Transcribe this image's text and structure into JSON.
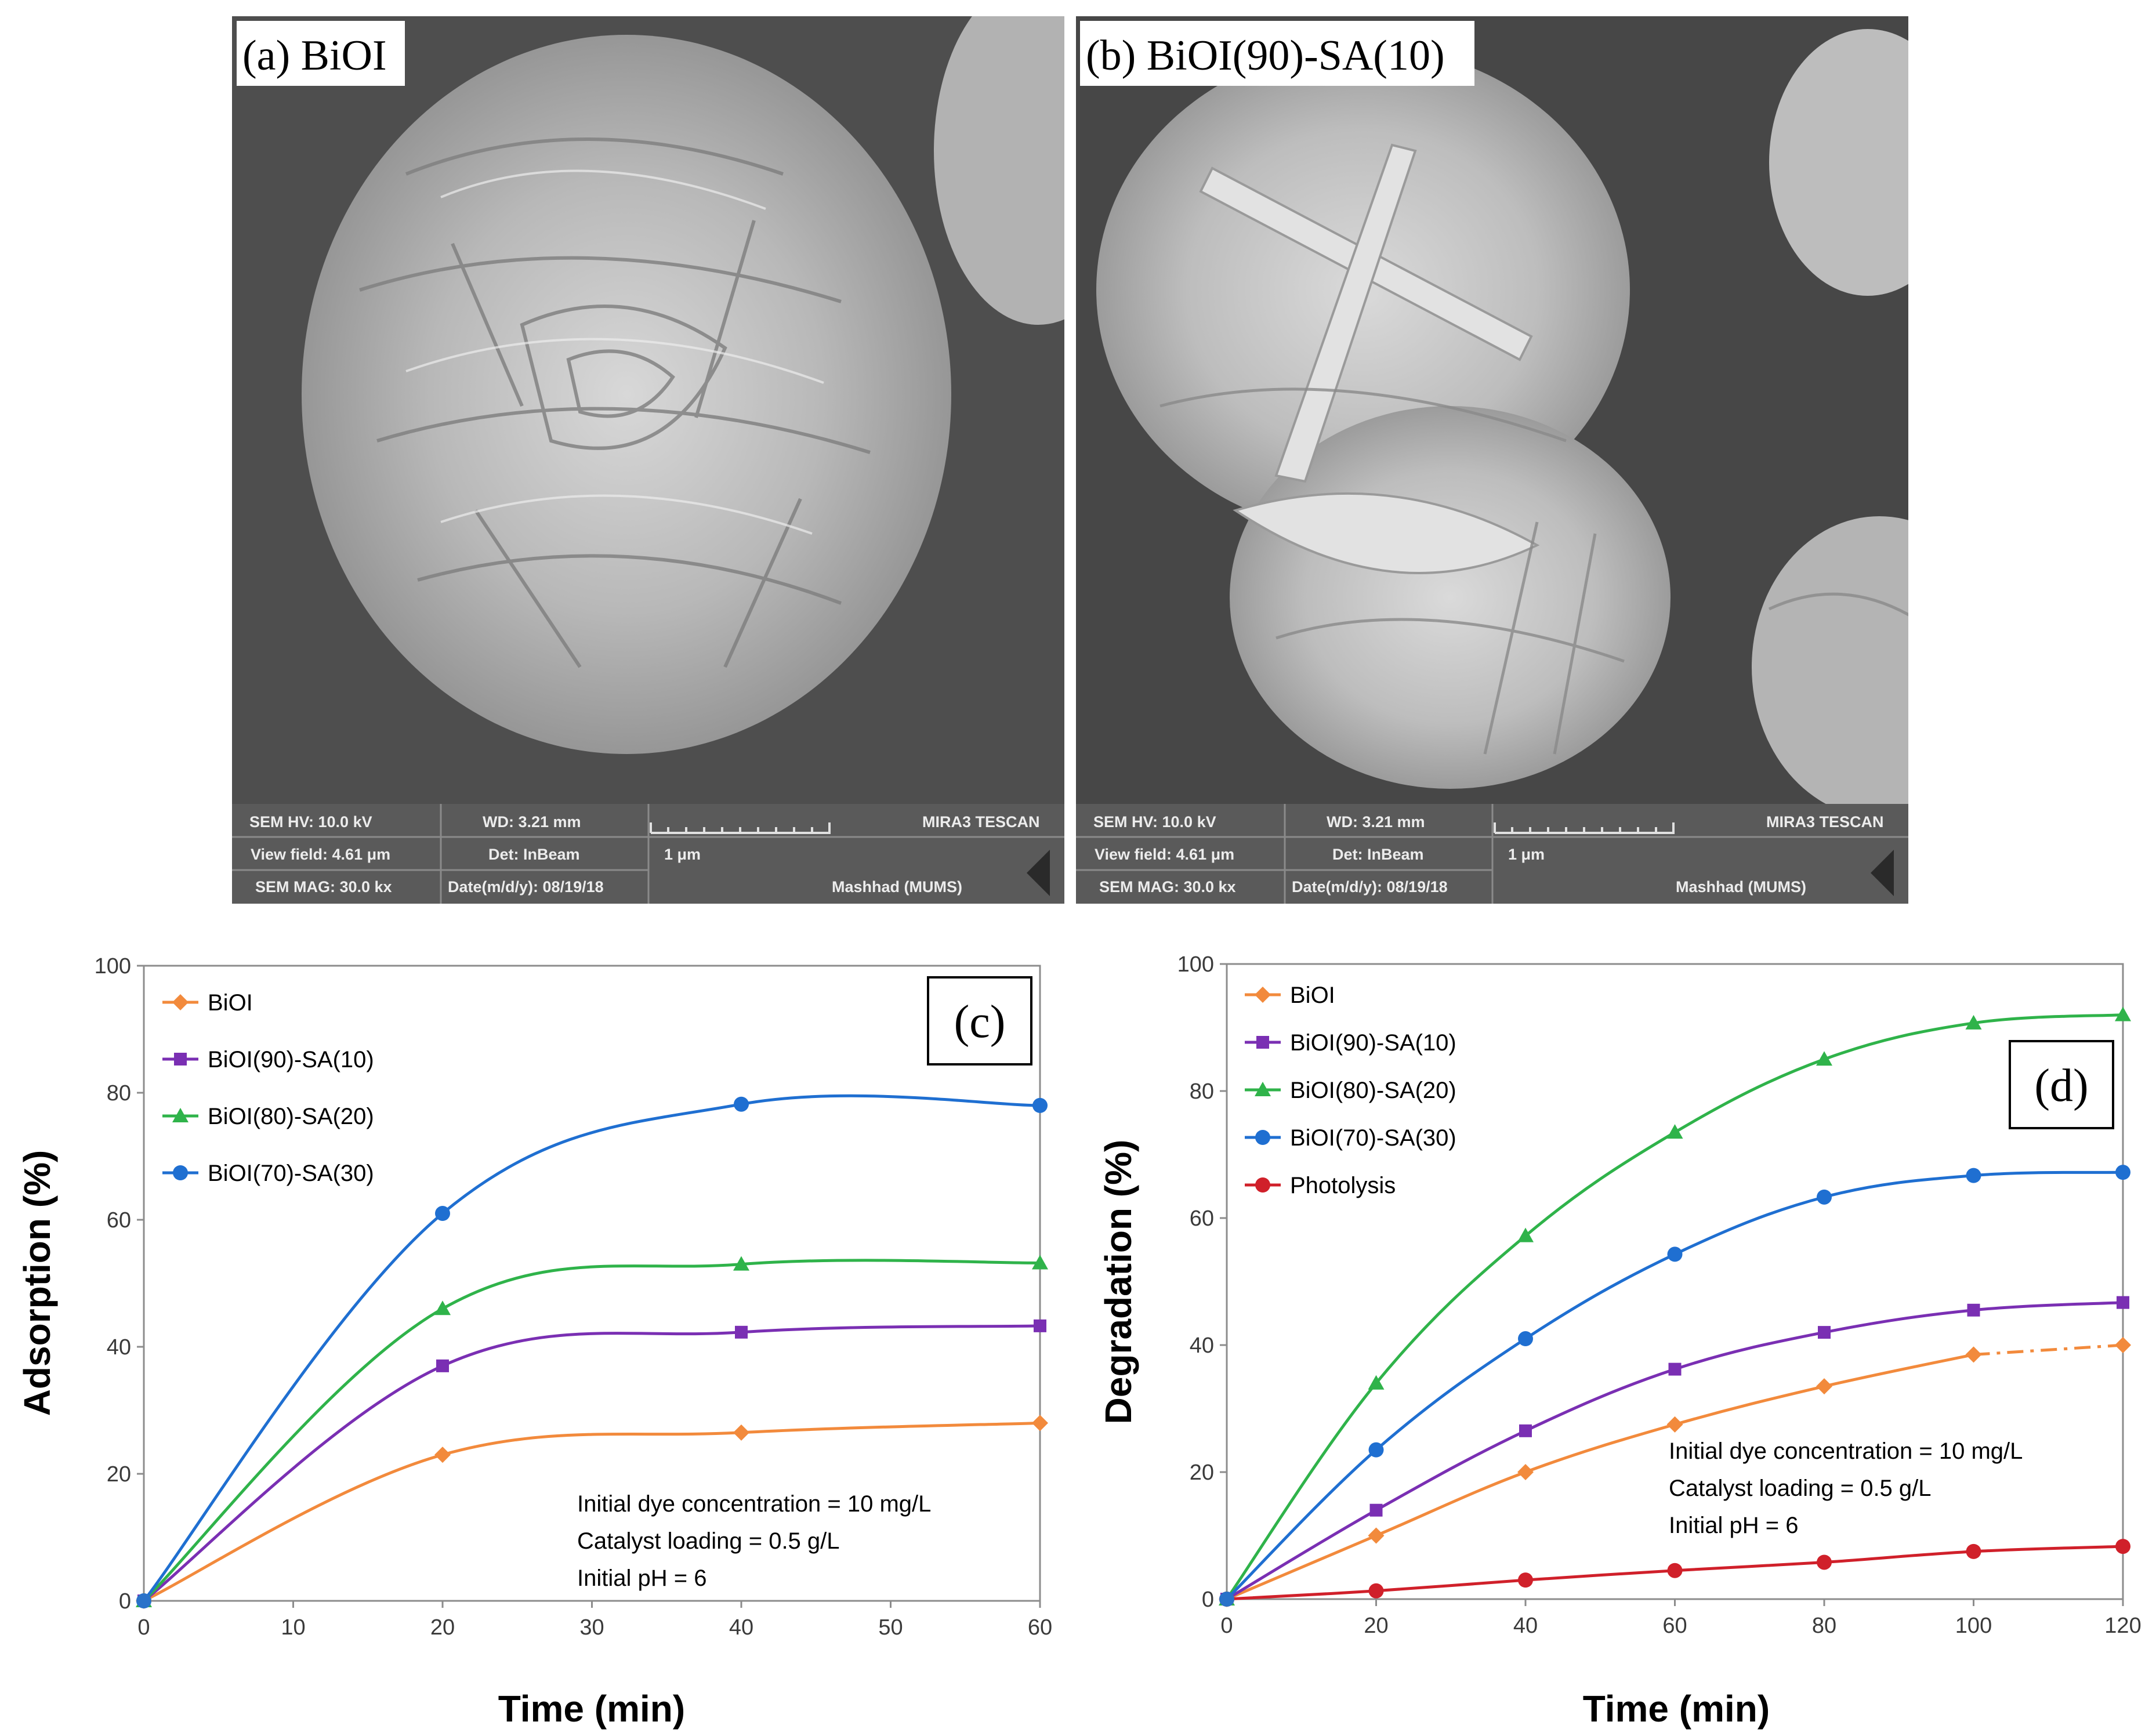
{
  "sem_panels": [
    {
      "label": "(a) BiOI",
      "info": {
        "hv": "SEM HV: 10.0 kV",
        "wd": "WD: 3.21 mm",
        "vendor": "MIRA3 TESCAN",
        "view_field": "View field: 4.61 μm",
        "det": "Det: InBeam",
        "scale": "1 μm",
        "mag": "SEM MAG: 30.0 kx",
        "date": "Date(m/d/y): 08/19/18",
        "lab": "Mashhad (MUMS)"
      }
    },
    {
      "label": "(b) BiOI(90)-SA(10)",
      "info": {
        "hv": "SEM HV: 10.0 kV",
        "wd": "WD: 3.21 mm",
        "vendor": "MIRA3 TESCAN",
        "view_field": "View field: 4.61 μm",
        "det": "Det: InBeam",
        "scale": "1 μm",
        "mag": "SEM MAG: 30.0 kx",
        "date": "Date(m/d/y): 08/19/18",
        "lab": "Mashhad (MUMS)"
      }
    }
  ],
  "chart_data": [
    {
      "type": "line",
      "panel_label": "(c)",
      "xlabel": "Time (min)",
      "ylabel": "Adsorption (%)",
      "xlim": [
        0,
        60
      ],
      "ylim": [
        0,
        100
      ],
      "xticks": [
        0,
        10,
        20,
        30,
        40,
        50,
        60
      ],
      "yticks": [
        0,
        20,
        40,
        60,
        80,
        100
      ],
      "legend_position": "top-left",
      "annotations": [
        "Initial dye concentration = 10 mg/L",
        "Catalyst loading = 0.5 g/L",
        "Initial pH = 6"
      ],
      "x": [
        0,
        20,
        40,
        60
      ],
      "series": [
        {
          "name": "BiOI",
          "marker": "diamond",
          "color": "#f28a3c",
          "values": [
            0,
            23,
            26.5,
            28
          ]
        },
        {
          "name": "BiOI(90)-SA(10)",
          "marker": "square",
          "color": "#7a2fb3",
          "values": [
            0,
            37,
            42.3,
            43.3
          ]
        },
        {
          "name": "BiOI(80)-SA(20)",
          "marker": "triangle",
          "color": "#2fb34a",
          "values": [
            0,
            46,
            53,
            53.2
          ]
        },
        {
          "name": "BiOI(70)-SA(30)",
          "marker": "circle",
          "color": "#1f6fd1",
          "values": [
            0,
            61,
            78.2,
            78
          ]
        }
      ]
    },
    {
      "type": "line",
      "panel_label": "(d)",
      "xlabel": "Time (min)",
      "ylabel": "Degradation (%)",
      "xlim": [
        0,
        120
      ],
      "ylim": [
        0,
        100
      ],
      "xticks": [
        0,
        20,
        40,
        60,
        80,
        100,
        120
      ],
      "yticks": [
        0,
        20,
        40,
        60,
        80,
        100
      ],
      "legend_position": "top-left",
      "annotations": [
        "Initial dye concentration = 10 mg/L",
        "Catalyst loading = 0.5 g/L",
        "Initial pH = 6"
      ],
      "x": [
        0,
        20,
        40,
        60,
        80,
        100,
        120
      ],
      "series": [
        {
          "name": "BiOI",
          "marker": "diamond",
          "color": "#f28a3c",
          "values": [
            0,
            10,
            20,
            27.5,
            33.5,
            38.5,
            40
          ]
        },
        {
          "name": "BiOI(90)-SA(10)",
          "marker": "square",
          "color": "#7a2fb3",
          "values": [
            0,
            14,
            26.5,
            36.2,
            42,
            45.5,
            46.7
          ]
        },
        {
          "name": "BiOI(80)-SA(20)",
          "marker": "triangle",
          "color": "#2fb34a",
          "values": [
            0,
            34,
            57.2,
            73.5,
            85,
            90.7,
            92
          ]
        },
        {
          "name": "BiOI(70)-SA(30)",
          "marker": "circle",
          "color": "#1f6fd1",
          "values": [
            0,
            23.5,
            41,
            54.3,
            63.3,
            66.7,
            67.2
          ]
        },
        {
          "name": "Photolysis",
          "marker": "circle",
          "color": "#d0202a",
          "values": [
            0,
            1.3,
            3,
            4.5,
            5.8,
            7.5,
            8.3
          ]
        }
      ]
    }
  ]
}
